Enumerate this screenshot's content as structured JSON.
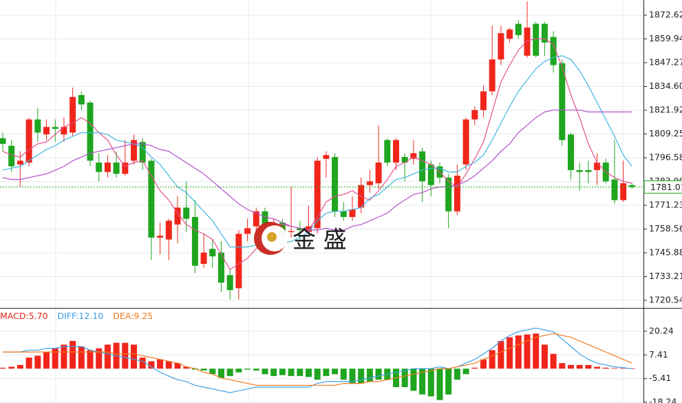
{
  "chart_data": [
    {
      "type": "candlestick",
      "up_color": "#f0261b",
      "down_color": "#1fa51f",
      "open": [
        1807,
        1803,
        1793,
        1794,
        1817,
        1809,
        1813,
        1809,
        1810,
        1830,
        1826,
        1794,
        1789,
        1794,
        1788,
        1795,
        1805,
        1795,
        1754,
        1753,
        1761,
        1770,
        1765,
        1740,
        1748,
        1746,
        1734,
        1727,
        1756,
        1760,
        1768,
        1758,
        1762,
        1757,
        1759,
        1757,
        1759,
        1796,
        1797,
        1768,
        1765,
        1770,
        1782,
        1783,
        1806,
        1794,
        1797,
        1796,
        1800,
        1793,
        1792,
        1786,
        1768,
        1793,
        1817,
        1822,
        1832,
        1849,
        1860,
        1868,
        1851,
        1868,
        1868,
        1861,
        1847,
        1809,
        1790,
        1790,
        1790,
        1794,
        1785,
        1774,
        1782
      ],
      "high": [
        1810,
        1806,
        1800,
        1818,
        1823,
        1817,
        1817,
        1818,
        1834,
        1832,
        1827,
        1799,
        1798,
        1800,
        1806,
        1809,
        1807,
        1796,
        1762,
        1764,
        1776,
        1784,
        1774,
        1756,
        1753,
        1752,
        1737,
        1758,
        1764,
        1770,
        1770,
        1764,
        1764,
        1781,
        1763,
        1771,
        1797,
        1800,
        1799,
        1773,
        1776,
        1786,
        1790,
        1814,
        1807,
        1807,
        1799,
        1806,
        1802,
        1795,
        1794,
        1788,
        1793,
        1818,
        1824,
        1835,
        1867,
        1867,
        1866,
        1870,
        1880,
        1869,
        1869,
        1864,
        1849,
        1810,
        1794,
        1795,
        1799,
        1796,
        1806,
        1795,
        1783
      ],
      "low": [
        1800,
        1789,
        1781,
        1792,
        1805,
        1806,
        1805,
        1805,
        1808,
        1822,
        1792,
        1784,
        1786,
        1786,
        1787,
        1793,
        1790,
        1742,
        1745,
        1742,
        1751,
        1757,
        1735,
        1738,
        1738,
        1725,
        1721,
        1721,
        1752,
        1755,
        1757,
        1752,
        1752,
        1754,
        1753,
        1755,
        1756,
        1786,
        1765,
        1763,
        1763,
        1767,
        1778,
        1780,
        1792,
        1790,
        1784,
        1793,
        1773,
        1776,
        1783,
        1759,
        1766,
        1790,
        1814,
        1818,
        1830,
        1846,
        1858,
        1860,
        1850,
        1850,
        1851,
        1842,
        1803,
        1785,
        1779,
        1783,
        1782,
        1783,
        1772,
        1773,
        1780
      ],
      "close": [
        1804,
        1792,
        1795,
        1817,
        1810,
        1813,
        1812,
        1813,
        1829,
        1825,
        1795,
        1789,
        1794,
        1788,
        1794,
        1806,
        1794,
        1754,
        1755,
        1763,
        1770,
        1764,
        1739,
        1746,
        1744,
        1730,
        1726,
        1756,
        1759,
        1768,
        1761,
        1761,
        1755,
        1757.5,
        1758,
        1760,
        1795,
        1798,
        1768,
        1765,
        1769,
        1782,
        1784,
        1794,
        1794,
        1806,
        1794,
        1799,
        1784,
        1782,
        1786,
        1768,
        1787,
        1817,
        1822,
        1832,
        1849,
        1863,
        1865,
        1862,
        1866,
        1851,
        1858,
        1846,
        1806,
        1790,
        1789,
        1789,
        1794,
        1784,
        1774,
        1783,
        1781
      ],
      "series": [
        {
          "color": "#e4508c",
          "values": [
            1800,
            1798,
            1797,
            1801,
            1804,
            1805,
            1809,
            1813,
            1815,
            1818,
            1815,
            1810,
            1806,
            1798,
            1792,
            1794,
            1795,
            1787,
            1779,
            1774,
            1767,
            1761,
            1758,
            1756,
            1753,
            1745,
            1737,
            1740,
            1743,
            1748,
            1754,
            1761,
            1761,
            1760,
            1759,
            1758,
            1765,
            1773,
            1776,
            1777,
            1779,
            1776,
            1774,
            1779,
            1785,
            1792,
            1794,
            1797,
            1795,
            1793,
            1789,
            1784,
            1781,
            1788,
            1796,
            1805,
            1821,
            1837,
            1846,
            1854,
            1859,
            1860,
            1860,
            1857,
            1845,
            1830,
            1818,
            1804,
            1794,
            1789,
            1786,
            1784,
            1783
          ]
        },
        {
          "color": "#3fb6df",
          "values": [
            1790,
            1791,
            1792,
            1795,
            1798,
            1801,
            1803,
            1806,
            1808,
            1810,
            1810,
            1810,
            1809,
            1806,
            1805,
            1804,
            1802,
            1797,
            1793,
            1787,
            1781,
            1778,
            1773,
            1768,
            1763,
            1756,
            1749,
            1749,
            1749,
            1750,
            1750,
            1749,
            1751,
            1752,
            1754,
            1757,
            1763,
            1767,
            1768,
            1768,
            1769,
            1770,
            1775,
            1777,
            1781,
            1785,
            1786,
            1788,
            1790,
            1791,
            1791,
            1789,
            1789,
            1792,
            1794,
            1798,
            1806,
            1815,
            1824,
            1832,
            1838,
            1844,
            1848,
            1850,
            1851,
            1849,
            1843,
            1835,
            1826,
            1817,
            1808,
            1798,
            1792
          ]
        },
        {
          "color": "#b04fc9",
          "values": [
            1786,
            1785,
            1785,
            1786,
            1787,
            1788,
            1790,
            1792,
            1795,
            1797,
            1799,
            1800,
            1801,
            1802,
            1803,
            1804,
            1804,
            1803,
            1801,
            1800,
            1797,
            1794,
            1791,
            1788,
            1784,
            1780,
            1776,
            1772,
            1769,
            1767,
            1765,
            1764,
            1762,
            1760,
            1759,
            1758,
            1758,
            1759,
            1758,
            1758,
            1760,
            1761,
            1763,
            1765,
            1767,
            1771,
            1774,
            1777,
            1778,
            1780,
            1781,
            1781,
            1782,
            1784,
            1787,
            1791,
            1795,
            1800,
            1804,
            1810,
            1814,
            1818,
            1821,
            1822,
            1822,
            1822,
            1822,
            1821,
            1821,
            1821,
            1821,
            1821,
            1821
          ]
        }
      ],
      "last_price": 1781.01,
      "last_price_color": "#1fa51f",
      "ylim": [
        1716.5,
        1880.7
      ],
      "yticks": [
        1872.62,
        1859.94,
        1847.27,
        {
          "value": 1834.6,
          "label": "1834.60"
        },
        1821.92,
        1809.25,
        1796.58,
        {
          "value": 1783.9,
          "label": "1783.90"
        },
        1771.23,
        1758.56,
        1745.88,
        1733.21,
        1720.54
      ],
      "grid": true,
      "watermark": "金 盛"
    },
    {
      "type": "macd",
      "up_color": "#f0261b",
      "down_color": "#1fa51f",
      "series": [
        {
          "name": "MACD:",
          "legend_value": {
            "value": 5.7,
            "label": "5.70"
          },
          "color": "#e4261b",
          "kind": "bar",
          "values": [
            0.5,
            1,
            2,
            6,
            7,
            9,
            11,
            13,
            15,
            12,
            10,
            11,
            13,
            14,
            14,
            13,
            6,
            4,
            5,
            4,
            3,
            1,
            -0.5,
            -1,
            -3,
            -5,
            -4,
            -2,
            -0.5,
            -1,
            -3,
            -4,
            -3.5,
            -4,
            -4,
            -4.5,
            -6,
            -4,
            -3,
            -6,
            -8,
            -8,
            -7,
            -6,
            -6,
            -10,
            -10,
            -12,
            -14,
            -15,
            -17,
            -14,
            -6,
            -3,
            0.5,
            5,
            10,
            15,
            17,
            18,
            18.5,
            19,
            13,
            8,
            3,
            2,
            2,
            2,
            1,
            0.5,
            0.3,
            0.3,
            0.2
          ]
        },
        {
          "name": "DIFF:",
          "legend_value": {
            "value": 12.1,
            "label": "12.10"
          },
          "color": "#3c9fe6",
          "kind": "line",
          "values": [
            9,
            9,
            9,
            10,
            10,
            11,
            11,
            12,
            12,
            12,
            10,
            9,
            8,
            7,
            6,
            5,
            4,
            1,
            -2,
            -4,
            -6,
            -7,
            -9,
            -10,
            -11,
            -12,
            -13,
            -12,
            -11,
            -10,
            -10,
            -10,
            -10,
            -10,
            -10,
            -10,
            -8,
            -7,
            -7,
            -7,
            -7,
            -6,
            -5,
            -4,
            -3,
            -2,
            -1,
            0,
            0,
            0,
            1,
            0,
            1,
            3,
            5,
            8,
            11,
            15,
            18,
            20,
            21,
            22,
            21,
            20,
            16,
            12,
            8,
            5,
            3,
            2,
            1,
            0.5,
            0
          ]
        },
        {
          "name": "DEA:",
          "legend_value": 9.25,
          "color": "#f07a1e",
          "kind": "line",
          "values": [
            9,
            9,
            9,
            9,
            9,
            9,
            9,
            9,
            9,
            9,
            9,
            9,
            9,
            8,
            8,
            8,
            7,
            6,
            5,
            4,
            3,
            1,
            0,
            -2,
            -3,
            -5,
            -6,
            -7,
            -8,
            -9,
            -9,
            -9,
            -9,
            -9,
            -9,
            -9,
            -9,
            -9,
            -9,
            -8,
            -8,
            -8,
            -7,
            -7,
            -6,
            -5,
            -4,
            -3,
            -2,
            -1,
            0,
            0,
            1,
            2,
            3,
            5,
            7,
            9,
            11,
            13,
            15,
            17,
            18,
            19,
            18,
            17,
            15,
            13,
            11,
            9,
            7,
            5,
            3
          ]
        }
      ],
      "ylim": [
        -18.6,
        32.5
      ],
      "yticks": [
        20.24,
        7.41,
        -5.41,
        -18.24
      ],
      "grid": true
    }
  ]
}
